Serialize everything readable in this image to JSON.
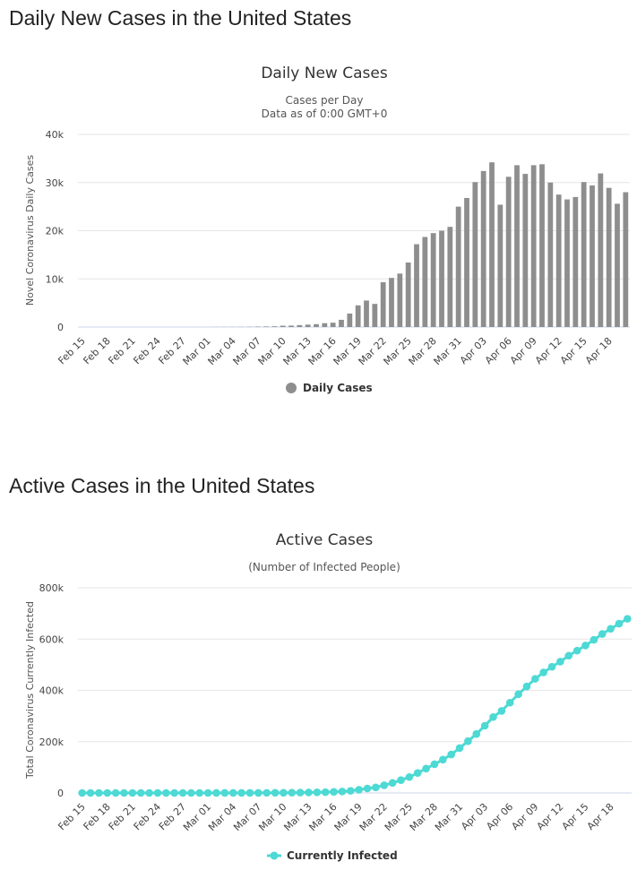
{
  "page": {
    "heading_daily": "Daily New Cases in the United States",
    "heading_active": "Active Cases in the United States"
  },
  "chart_data": [
    {
      "type": "bar",
      "title": "Daily New Cases",
      "subtitle_lines": [
        "Cases per Day",
        "Data as of 0:00 GMT+0"
      ],
      "ylabel": "Novel Coronavirus Daily Cases",
      "xlabel": "",
      "ylim": [
        0,
        40000
      ],
      "yticks": [
        0,
        10000,
        20000,
        30000,
        40000
      ],
      "ytick_labels": [
        "0",
        "10k",
        "20k",
        "30k",
        "40k"
      ],
      "xtick_labels": [
        "Feb 15",
        "Feb 18",
        "Feb 21",
        "Feb 24",
        "Feb 27",
        "Mar 01",
        "Mar 04",
        "Mar 07",
        "Mar 10",
        "Mar 13",
        "Mar 16",
        "Mar 19",
        "Mar 22",
        "Mar 25",
        "Mar 28",
        "Mar 31",
        "Apr 03",
        "Apr 06",
        "Apr 09",
        "Apr 12",
        "Apr 15",
        "Apr 18"
      ],
      "categories": [
        "Feb 15",
        "Feb 16",
        "Feb 17",
        "Feb 18",
        "Feb 19",
        "Feb 20",
        "Feb 21",
        "Feb 22",
        "Feb 23",
        "Feb 24",
        "Feb 25",
        "Feb 26",
        "Feb 27",
        "Feb 28",
        "Feb 29",
        "Mar 01",
        "Mar 02",
        "Mar 03",
        "Mar 04",
        "Mar 05",
        "Mar 06",
        "Mar 07",
        "Mar 08",
        "Mar 09",
        "Mar 10",
        "Mar 11",
        "Mar 12",
        "Mar 13",
        "Mar 14",
        "Mar 15",
        "Mar 16",
        "Mar 17",
        "Mar 18",
        "Mar 19",
        "Mar 20",
        "Mar 21",
        "Mar 22",
        "Mar 23",
        "Mar 24",
        "Mar 25",
        "Mar 26",
        "Mar 27",
        "Mar 28",
        "Mar 29",
        "Mar 30",
        "Mar 31",
        "Apr 01",
        "Apr 02",
        "Apr 03",
        "Apr 04",
        "Apr 05",
        "Apr 06",
        "Apr 07",
        "Apr 08",
        "Apr 09",
        "Apr 10",
        "Apr 11",
        "Apr 12",
        "Apr 13",
        "Apr 14",
        "Apr 15",
        "Apr 16",
        "Apr 17",
        "Apr 18",
        "Apr 19",
        "Apr 20"
      ],
      "series": [
        {
          "name": "Daily Cases",
          "color": "#8e8e8e",
          "values": [
            0,
            0,
            0,
            0,
            0,
            0,
            0,
            0,
            0,
            0,
            0,
            0,
            0,
            0,
            5,
            10,
            20,
            25,
            30,
            40,
            60,
            100,
            120,
            150,
            280,
            300,
            400,
            500,
            600,
            800,
            900,
            1500,
            2800,
            4500,
            5500,
            4800,
            9300,
            10200,
            11100,
            13400,
            17200,
            18700,
            19500,
            20000,
            20800,
            25000,
            26800,
            30100,
            32400,
            34200,
            25400,
            31200,
            33600,
            31800,
            33600,
            33800,
            30000,
            27500,
            26500,
            27000,
            30100,
            29400,
            31900,
            28900,
            25600,
            28000
          ]
        }
      ],
      "legend": "bottom-center",
      "grid": true
    },
    {
      "type": "line",
      "title": "Active Cases",
      "subtitle_lines": [
        "(Number of Infected People)"
      ],
      "ylabel": "Total Coronavirus Currently Infected",
      "xlabel": "",
      "ylim": [
        0,
        800000
      ],
      "yticks": [
        0,
        200000,
        400000,
        600000,
        800000
      ],
      "ytick_labels": [
        "0",
        "200k",
        "400k",
        "600k",
        "800k"
      ],
      "xtick_labels": [
        "Feb 15",
        "Feb 18",
        "Feb 21",
        "Feb 24",
        "Feb 27",
        "Mar 01",
        "Mar 04",
        "Mar 07",
        "Mar 10",
        "Mar 13",
        "Mar 16",
        "Mar 19",
        "Mar 22",
        "Mar 25",
        "Mar 28",
        "Mar 31",
        "Apr 03",
        "Apr 06",
        "Apr 09",
        "Apr 12",
        "Apr 15",
        "Apr 18"
      ],
      "series": [
        {
          "name": "Currently Infected",
          "color": "#4dd9d4",
          "values": [
            12,
            12,
            12,
            12,
            12,
            12,
            12,
            12,
            12,
            12,
            12,
            12,
            12,
            12,
            25,
            40,
            60,
            90,
            110,
            140,
            190,
            280,
            400,
            520,
            720,
            1000,
            1400,
            1800,
            2400,
            3100,
            4200,
            5700,
            8300,
            12500,
            17500,
            21500,
            30000,
            39000,
            50000,
            62000,
            78000,
            95000,
            112000,
            130000,
            150000,
            175000,
            202000,
            230000,
            262000,
            296000,
            320000,
            352000,
            385000,
            415000,
            445000,
            470000,
            492000,
            512000,
            535000,
            555000,
            575000,
            597000,
            620000,
            640000,
            660000,
            679000
          ]
        }
      ],
      "legend": "bottom-center",
      "grid": true
    }
  ]
}
